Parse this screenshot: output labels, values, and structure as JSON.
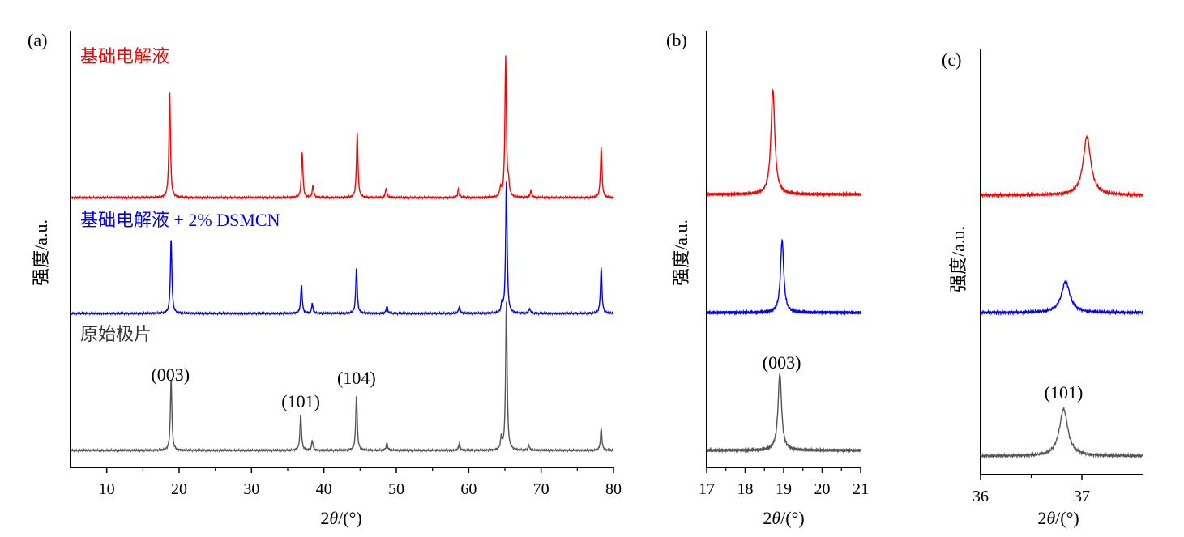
{
  "chart_data": [
    {
      "type": "line",
      "panel_label": "(a)",
      "xlabel_prefix": "2",
      "xlabel_theta": "θ",
      "xlabel_unit": "/(°)",
      "ylabel": "强度/a.u.",
      "xlim": [
        5,
        80
      ],
      "xticks": [
        10,
        20,
        30,
        40,
        50,
        60,
        70,
        80
      ],
      "xtick_labels": [
        "10",
        "20",
        "30",
        "40",
        "50",
        "60",
        "70",
        "80"
      ],
      "y_scale": "arbitrary",
      "peak_annotations": [
        {
          "label": "(003)",
          "x": 18.8
        },
        {
          "label": "(101)",
          "x": 36.8
        },
        {
          "label": "(104)",
          "x": 44.5
        }
      ],
      "series": [
        {
          "name": "基础电解液",
          "color": "#ff0000",
          "baseline": 0.7,
          "peaks": [
            [
              18.7,
              0.44
            ],
            [
              37.0,
              0.19
            ],
            [
              38.5,
              0.05
            ],
            [
              44.6,
              0.27
            ],
            [
              48.6,
              0.04
            ],
            [
              58.6,
              0.04
            ],
            [
              64.4,
              0.04
            ],
            [
              65.1,
              0.58
            ],
            [
              65.5,
              0.05
            ],
            [
              68.6,
              0.03
            ],
            [
              78.3,
              0.21
            ]
          ]
        },
        {
          "name": "基础电解液 + 2% DSMCN",
          "color": "#0000ff",
          "baseline": 0.36,
          "peaks": [
            [
              18.9,
              0.31
            ],
            [
              36.9,
              0.12
            ],
            [
              38.4,
              0.04
            ],
            [
              44.5,
              0.19
            ],
            [
              48.7,
              0.03
            ],
            [
              58.7,
              0.03
            ],
            [
              64.6,
              0.04
            ],
            [
              65.2,
              0.55
            ],
            [
              68.4,
              0.02
            ],
            [
              78.3,
              0.19
            ]
          ]
        },
        {
          "name": "原始极片",
          "color": "#555555",
          "baseline": 0.0,
          "peaks": [
            [
              18.9,
              0.3
            ],
            [
              36.8,
              0.15
            ],
            [
              38.4,
              0.04
            ],
            [
              44.5,
              0.23
            ],
            [
              48.7,
              0.03
            ],
            [
              58.7,
              0.03
            ],
            [
              64.5,
              0.05
            ],
            [
              65.2,
              0.62
            ],
            [
              68.3,
              0.02
            ],
            [
              78.3,
              0.09
            ]
          ]
        }
      ]
    },
    {
      "type": "line",
      "panel_label": "(b)",
      "xlabel_prefix": "2",
      "xlabel_theta": "θ",
      "xlabel_unit": "/(°)",
      "ylabel": "强度/a.u.",
      "xlim": [
        17,
        21
      ],
      "xticks": [
        17,
        18,
        19,
        20,
        21
      ],
      "xtick_labels": [
        "17",
        "18",
        "19",
        "20",
        "21"
      ],
      "y_scale": "arbitrary",
      "peak_annotations": [
        {
          "label": "(003)",
          "x": 18.95
        }
      ],
      "series": [
        {
          "name": "基础电解液",
          "color": "#ff0000",
          "baseline": 0.66,
          "peaks": [
            [
              18.72,
              0.26
            ]
          ]
        },
        {
          "name": "基础电解液 + 2% DSMCN",
          "color": "#0000ff",
          "baseline": 0.35,
          "peaks": [
            [
              18.96,
              0.18
            ]
          ]
        },
        {
          "name": "原始极片",
          "color": "#555555",
          "baseline": 0.0,
          "peaks": [
            [
              18.9,
              0.19
            ]
          ]
        }
      ]
    },
    {
      "type": "line",
      "panel_label": "(c)",
      "xlabel_prefix": "2",
      "xlabel_theta": "θ",
      "xlabel_unit": "/(°)",
      "ylabel": "强度/a.u.",
      "xlim": [
        36,
        37.6
      ],
      "xticks": [
        36,
        37
      ],
      "xtick_labels": [
        "36",
        "37"
      ],
      "y_scale": "arbitrary",
      "peak_annotations": [
        {
          "label": "(101)",
          "x": 36.82
        }
      ],
      "series": [
        {
          "name": "基础电解液",
          "color": "#ff0000",
          "baseline": 0.66,
          "peaks": [
            [
              37.05,
              0.15
            ]
          ]
        },
        {
          "name": "基础电解液 + 2% DSMCN",
          "color": "#0000ff",
          "baseline": 0.36,
          "peaks": [
            [
              36.84,
              0.08
            ]
          ]
        },
        {
          "name": "原始极片",
          "color": "#555555",
          "baseline": 0.0,
          "peaks": [
            [
              36.82,
              0.12
            ]
          ]
        }
      ]
    }
  ]
}
